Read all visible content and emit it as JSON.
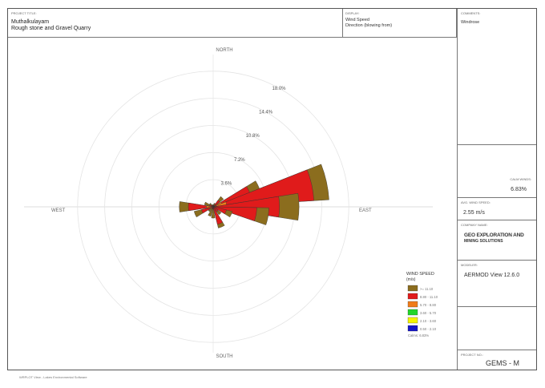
{
  "header": {
    "project_caption": "PROJECT TITLE:",
    "project_line1": "Muthalkulayam",
    "project_line2": "Rough stone and Gravel Quarry",
    "display_caption": "DISPLAY:",
    "display_line1": "Wind Speed",
    "display_line2": "Direction (blowing from)"
  },
  "sidebar": {
    "comments_caption": "COMMENTS:",
    "comments_value": "Windrose",
    "calm_caption": "CALM WINDS:",
    "calm_value": "6.83%",
    "avg_caption": "AVG. WIND SPEED:",
    "avg_value": "2.55 m/s",
    "company_caption": "COMPANY NAME:",
    "company_line1": "GEO EXPLORATION AND",
    "company_line2": "MINING SOLUTIONS",
    "modeler_caption": "MODELER:",
    "modeler_value": "AERMOD View 12.6.0",
    "project_no_caption": "PROJECT NO.:",
    "project_no_value": "GEMS - M"
  },
  "footer": {
    "text": "WRPLOT View - Lakes Environmental Software"
  },
  "chart_data": {
    "type": "windrose",
    "directions_label": {
      "north": "NORTH",
      "south": "SOUTH",
      "east": "EAST",
      "west": "WEST"
    },
    "ring_labels": [
      "3.6%",
      "7.2%",
      "10.8%",
      "14.4%",
      "18.0%"
    ],
    "ring_values": [
      3.6,
      7.2,
      10.8,
      14.4,
      18.0
    ],
    "direction_step_deg": 22.5,
    "legend_title": "WIND SPEED",
    "legend_unit": "(m/s)",
    "speed_classes": [
      {
        "label": ">= 11.10",
        "color": "#8b6d1e"
      },
      {
        "label": "8.80 - 11.10",
        "color": "#e01b1b"
      },
      {
        "label": "5.70 - 8.80",
        "color": "#f07c1a"
      },
      {
        "label": "3.60 - 5.70",
        "color": "#22d62a"
      },
      {
        "label": "2.10 - 3.60",
        "color": "#f4f400"
      },
      {
        "label": "0.50 - 2.10",
        "color": "#1515c8"
      }
    ],
    "calms_label": "Calms: 6.83%",
    "petals": [
      {
        "dir": 0,
        "stack": [
          0.2,
          0.1,
          0,
          0,
          0,
          0
        ]
      },
      {
        "dir": 22.5,
        "stack": [
          0.3,
          0.2,
          0,
          0,
          0,
          0
        ]
      },
      {
        "dir": 45,
        "stack": [
          0.6,
          0.9,
          0.2,
          0,
          0,
          0
        ]
      },
      {
        "dir": 67.5,
        "stack": [
          1.4,
          4.0,
          1.2,
          0,
          0,
          0
        ]
      },
      {
        "dir": 77.5,
        "stack": [
          2.0,
          11.6,
          1.8,
          0,
          0,
          0
        ]
      },
      {
        "dir": 90,
        "stack": [
          2.6,
          8.8,
          0,
          0,
          0,
          0
        ]
      },
      {
        "dir": 100,
        "stack": [
          1.6,
          5.8,
          0,
          0,
          0,
          0
        ]
      },
      {
        "dir": 112.5,
        "stack": [
          0.8,
          1.8,
          0,
          0,
          0,
          0
        ]
      },
      {
        "dir": 135,
        "stack": [
          0.5,
          0.8,
          0,
          0,
          0,
          0
        ]
      },
      {
        "dir": 157.5,
        "stack": [
          0.5,
          2.4,
          0,
          0,
          0,
          0
        ]
      },
      {
        "dir": 180,
        "stack": [
          1.2,
          0.3,
          0,
          0,
          0,
          0
        ]
      },
      {
        "dir": 202.5,
        "stack": [
          1.0,
          0.3,
          0,
          0,
          0,
          0
        ]
      },
      {
        "dir": 225,
        "stack": [
          0.5,
          0.3,
          0,
          0,
          0,
          0
        ]
      },
      {
        "dir": 247.5,
        "stack": [
          1.0,
          1.2,
          0.4,
          0,
          0,
          0
        ]
      },
      {
        "dir": 270,
        "stack": [
          1.2,
          2.4,
          0.9,
          0,
          0,
          0
        ]
      },
      {
        "dir": 292.5,
        "stack": [
          0.7,
          0.5,
          0,
          0,
          0,
          0
        ]
      },
      {
        "dir": 315,
        "stack": [
          0.3,
          0.3,
          0,
          0,
          0,
          0
        ]
      },
      {
        "dir": 337.5,
        "stack": [
          0.2,
          0.1,
          0,
          0,
          0,
          0
        ]
      }
    ]
  }
}
